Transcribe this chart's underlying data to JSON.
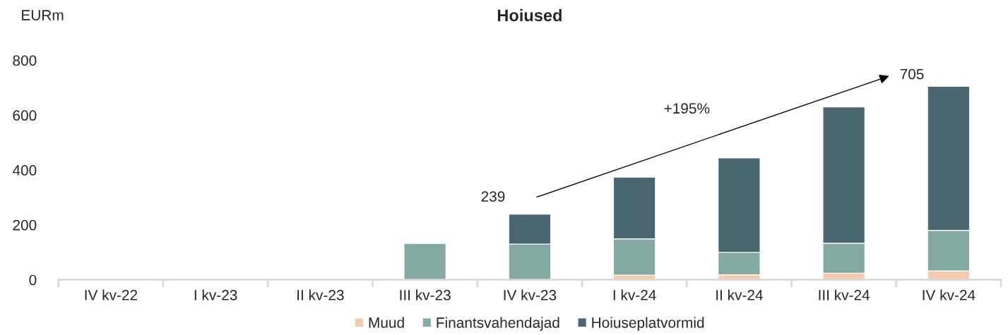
{
  "chart_data": {
    "type": "bar",
    "title": "Hoiused",
    "ylabel": "EURm",
    "stacked": true,
    "categories": [
      "IV kv-22",
      "I kv-23",
      "II kv-23",
      "III kv-23",
      "IV kv-23",
      "I kv-24",
      "II kv-24",
      "III kv-24",
      "IV kv-24"
    ],
    "series": [
      {
        "name": "Muud",
        "color": "#f5cbb0",
        "values": [
          null,
          null,
          null,
          null,
          null,
          17,
          18,
          24,
          32
        ]
      },
      {
        "name": "Finantsvahendajad",
        "color": "#84a8a2",
        "values": [
          null,
          null,
          null,
          132,
          130,
          132,
          82,
          109,
          148
        ]
      },
      {
        "name": "Hoiuseplatvormid",
        "color": "#4a6670",
        "values": [
          null,
          null,
          null,
          null,
          109,
          225,
          344,
          497,
          525
        ]
      }
    ],
    "ylim": [
      0,
      800
    ],
    "yticks": [
      0,
      200,
      400,
      600,
      800
    ],
    "grid": false,
    "legend": "bottom",
    "annotations": [
      {
        "text": "239",
        "x": "IV kv-23",
        "y": 239
      },
      {
        "text": "705",
        "x": "IV kv-24",
        "y": 705
      },
      "+195%"
    ]
  }
}
